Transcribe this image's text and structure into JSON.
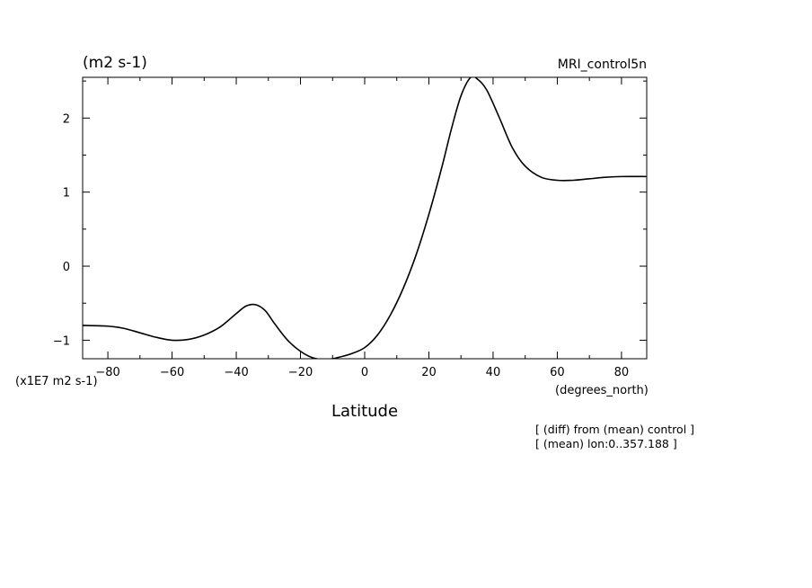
{
  "header": {
    "units": "(m2 s-1)",
    "dataset": "MRI_control5n"
  },
  "axes": {
    "ylabel": "(x1E7 m2 s-1)",
    "xunits": "(degrees_north)",
    "xlabel": "Latitude"
  },
  "notes": [
    "[ (diff) from (mean) control ]",
    "[ (mean) lon:0..357.188 ]"
  ],
  "chart_data": {
    "type": "line",
    "title": "",
    "xlabel": "Latitude",
    "ylabel": "(x1E7 m2 s-1)",
    "xlim": [
      -87.86,
      87.86
    ],
    "ylim": [
      -1.25,
      2.55
    ],
    "xticks": [
      -80,
      -60,
      -40,
      -20,
      0,
      20,
      40,
      60,
      80
    ],
    "xtick_labels": [
      "−80",
      "−60",
      "−40",
      "−20",
      "0",
      "20",
      "40",
      "60",
      "80"
    ],
    "yticks": [
      -1,
      0,
      1,
      2
    ],
    "ytick_labels": [
      "−1",
      "0",
      "1",
      "2"
    ],
    "grid": false,
    "series": [
      {
        "x": [
          -87.9,
          -80,
          -75,
          -70,
          -65,
          -60,
          -55,
          -50,
          -45,
          -40,
          -37,
          -34,
          -31,
          -28,
          -24,
          -20,
          -16,
          -12,
          -8,
          -4,
          0,
          4,
          8,
          12,
          16,
          20,
          24,
          27,
          30,
          33,
          35,
          38,
          42,
          46,
          50,
          55,
          60,
          65,
          70,
          75,
          80,
          87.9
        ],
        "y": [
          -0.8,
          -0.81,
          -0.84,
          -0.9,
          -0.96,
          -1.0,
          -0.99,
          -0.93,
          -0.82,
          -0.64,
          -0.54,
          -0.52,
          -0.6,
          -0.78,
          -1.0,
          -1.15,
          -1.24,
          -1.26,
          -1.23,
          -1.18,
          -1.1,
          -0.93,
          -0.66,
          -0.3,
          0.15,
          0.7,
          1.33,
          1.85,
          2.3,
          2.55,
          2.53,
          2.38,
          2.0,
          1.6,
          1.35,
          1.2,
          1.16,
          1.16,
          1.18,
          1.2,
          1.21,
          1.21
        ]
      }
    ]
  }
}
